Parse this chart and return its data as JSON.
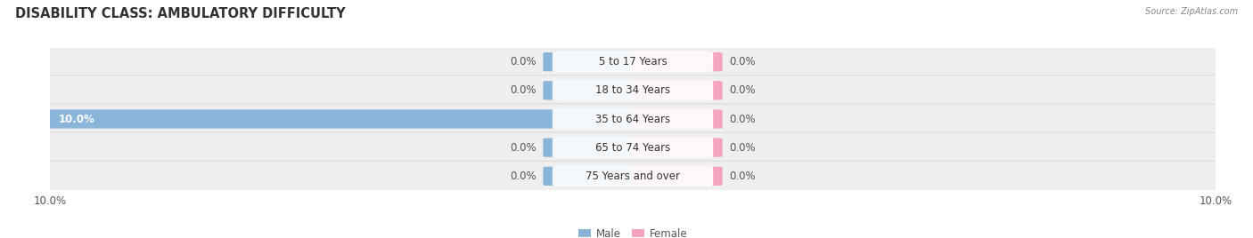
{
  "title": "DISABILITY CLASS: AMBULATORY DIFFICULTY",
  "source": "Source: ZipAtlas.com",
  "categories": [
    "5 to 17 Years",
    "18 to 34 Years",
    "35 to 64 Years",
    "65 to 74 Years",
    "75 Years and over"
  ],
  "male_values": [
    0.0,
    0.0,
    10.0,
    0.0,
    0.0
  ],
  "female_values": [
    0.0,
    0.0,
    0.0,
    0.0,
    0.0
  ],
  "male_color": "#8ab4d8",
  "female_color": "#f4a4bc",
  "row_bg_color": "#efefef",
  "row_border_color": "#d8d8d8",
  "max_value": 10.0,
  "title_fontsize": 10.5,
  "label_fontsize": 8.5,
  "tick_fontsize": 8.5,
  "title_color": "#333333",
  "value_color": "#555555",
  "background_color": "#ffffff",
  "min_bar_width": 1.5,
  "bar_height": 0.58
}
